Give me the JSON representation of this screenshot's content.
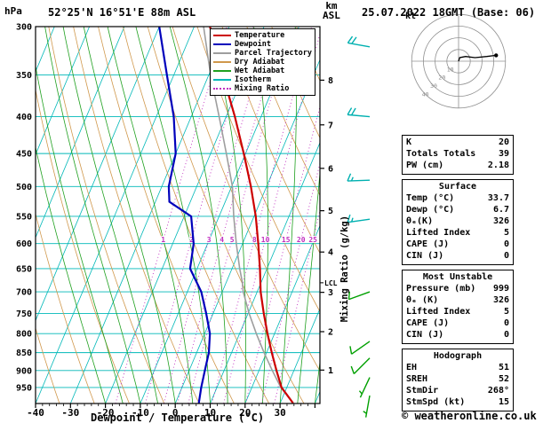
{
  "header": {
    "pressure_unit": "hPa",
    "station": "52°25'N 16°51'E 88m ASL",
    "datetime": "25.07.2022 18GMT (Base: 06)",
    "altitude_unit_km": "km",
    "altitude_unit_asl": "ASL"
  },
  "legend": {
    "items": [
      {
        "label": "Temperature",
        "color": "#cc0000",
        "dotted": false
      },
      {
        "label": "Dewpoint",
        "color": "#0000bb",
        "dotted": false
      },
      {
        "label": "Parcel Trajectory",
        "color": "#9e9e9e",
        "dotted": false
      },
      {
        "label": "Dry Adiabat",
        "color": "#d0984c",
        "dotted": false
      },
      {
        "label": "Wet Adiabat",
        "color": "#1fa01f",
        "dotted": false
      },
      {
        "label": "Isotherm",
        "color": "#00b8b8",
        "dotted": false
      },
      {
        "label": "Mixing Ratio",
        "color": "#c030c0",
        "dotted": true
      }
    ]
  },
  "hodograph_panel": {
    "unit": "kt",
    "ring_labels": [
      10,
      20,
      30,
      40
    ],
    "trace_kt": [
      [
        0,
        0
      ],
      [
        1,
        3
      ],
      [
        6,
        4
      ],
      [
        14,
        3
      ],
      [
        24,
        4
      ],
      [
        32,
        5
      ]
    ]
  },
  "tables": [
    {
      "title": "",
      "rows": [
        [
          "K",
          "20"
        ],
        [
          "Totals Totals",
          "39"
        ],
        [
          "PW (cm)",
          "2.18"
        ]
      ]
    },
    {
      "title": "Surface",
      "rows": [
        [
          "Temp (°C)",
          "33.7"
        ],
        [
          "Dewp (°C)",
          "6.7"
        ],
        [
          "θₑ(K)",
          "326"
        ],
        [
          "Lifted Index",
          "5"
        ],
        [
          "CAPE (J)",
          "0"
        ],
        [
          "CIN (J)",
          "0"
        ]
      ]
    },
    {
      "title": "Most Unstable",
      "rows": [
        [
          "Pressure (mb)",
          "999"
        ],
        [
          "θₑ (K)",
          "326"
        ],
        [
          "Lifted Index",
          "5"
        ],
        [
          "CAPE (J)",
          "0"
        ],
        [
          "CIN (J)",
          "0"
        ]
      ]
    },
    {
      "title": "Hodograph",
      "rows": [
        [
          "EH",
          "51"
        ],
        [
          "SREH",
          "52"
        ],
        [
          "StmDir",
          "268°"
        ],
        [
          "StmSpd (kt)",
          "15"
        ]
      ]
    }
  ],
  "footer": {
    "copyright": "© weatheronline.co.uk"
  },
  "chart_data": {
    "type": "skewt-log-p",
    "xlabel": "Dewpoint / Temperature (°C)",
    "ylabel_right": "Mixing Ratio (g/kg)",
    "pressure_range": [
      300,
      1000
    ],
    "temp_axis_range": [
      -40,
      40
    ],
    "pressure_ticks": [
      300,
      350,
      400,
      450,
      500,
      550,
      600,
      650,
      700,
      750,
      800,
      850,
      900,
      950
    ],
    "temp_ticks": [
      -40,
      -30,
      -20,
      -10,
      0,
      10,
      20,
      30
    ],
    "km_ticks": [
      1,
      2,
      3,
      4,
      5,
      6,
      7,
      8
    ],
    "isotherm_step": 10,
    "dry_adiabat_step": 10,
    "wet_adiabat_start_temps": [
      -20,
      -15,
      -10,
      -5,
      0,
      5,
      10,
      15,
      20,
      25,
      30,
      35,
      40
    ],
    "mixing_ratio_lines": [
      1,
      2,
      3,
      4,
      5,
      8,
      10,
      15,
      20,
      25
    ],
    "lcl": {
      "pressure": 680,
      "label": "LCL"
    },
    "temperature_profile": [
      [
        999,
        33.7
      ],
      [
        950,
        28.5
      ],
      [
        900,
        25
      ],
      [
        850,
        21.5
      ],
      [
        800,
        18
      ],
      [
        750,
        14.5
      ],
      [
        700,
        11
      ],
      [
        650,
        8
      ],
      [
        600,
        4.5
      ],
      [
        550,
        0.5
      ],
      [
        500,
        -4.5
      ],
      [
        450,
        -10.5
      ],
      [
        400,
        -17.5
      ],
      [
        350,
        -26
      ],
      [
        300,
        -35.5
      ]
    ],
    "dewpoint_profile": [
      [
        999,
        6.7
      ],
      [
        950,
        5.5
      ],
      [
        900,
        4.5
      ],
      [
        850,
        3.5
      ],
      [
        800,
        1.5
      ],
      [
        750,
        -2
      ],
      [
        700,
        -6
      ],
      [
        650,
        -12
      ],
      [
        600,
        -14
      ],
      [
        550,
        -18
      ],
      [
        525,
        -26
      ],
      [
        500,
        -28
      ],
      [
        450,
        -30
      ],
      [
        400,
        -35
      ],
      [
        350,
        -42
      ],
      [
        300,
        -50
      ]
    ],
    "parcel_profile": [
      [
        999,
        33.7
      ],
      [
        950,
        28.3
      ],
      [
        900,
        23.8
      ],
      [
        850,
        19.3
      ],
      [
        800,
        14.8
      ],
      [
        750,
        10.3
      ],
      [
        700,
        6
      ],
      [
        680,
        4.7
      ],
      [
        650,
        2.2
      ],
      [
        600,
        -1.8
      ],
      [
        550,
        -5.8
      ],
      [
        500,
        -9.8
      ],
      [
        450,
        -15.5
      ],
      [
        400,
        -22
      ],
      [
        350,
        -29.5
      ],
      [
        300,
        -37.3
      ]
    ],
    "wind_barbs": [
      {
        "p": 320,
        "speed": 20,
        "dir": 280
      },
      {
        "p": 400,
        "speed": 20,
        "dir": 275
      },
      {
        "p": 490,
        "speed": 15,
        "dir": 268
      },
      {
        "p": 555,
        "speed": 15,
        "dir": 262
      },
      {
        "p": 700,
        "speed": 10,
        "dir": 250
      },
      {
        "p": 820,
        "speed": 10,
        "dir": 235
      },
      {
        "p": 865,
        "speed": 8,
        "dir": 225
      },
      {
        "p": 920,
        "speed": 5,
        "dir": 205
      },
      {
        "p": 975,
        "speed": 5,
        "dir": 190
      }
    ],
    "colors": {
      "temperature": "#cc0000",
      "dewpoint": "#0000bb",
      "parcel": "#9e9e9e",
      "dry_adiabat": "#d0984c",
      "wet_adiabat": "#1fa01f",
      "isotherm": "#00b8b8",
      "isobar": "#00b8b8",
      "mixing_ratio": "#c030c0",
      "barb_upper": "#00b0b0",
      "barb_lower": "#00a000",
      "frame": "#000000",
      "hodograph_ring": "#909090",
      "hodograph_trace": "#000000"
    }
  }
}
